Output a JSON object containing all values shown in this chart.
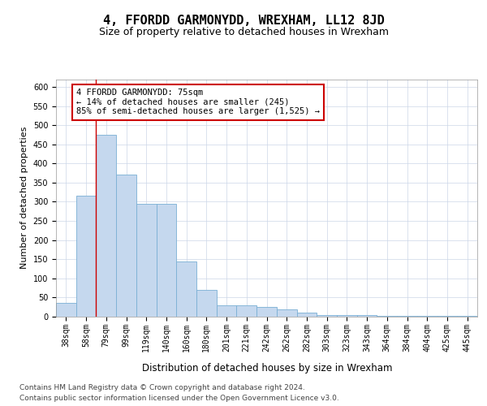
{
  "title": "4, FFORDD GARMONYDD, WREXHAM, LL12 8JD",
  "subtitle": "Size of property relative to detached houses in Wrexham",
  "xlabel": "Distribution of detached houses by size in Wrexham",
  "ylabel": "Number of detached properties",
  "categories": [
    "38sqm",
    "58sqm",
    "79sqm",
    "99sqm",
    "119sqm",
    "140sqm",
    "160sqm",
    "180sqm",
    "201sqm",
    "221sqm",
    "242sqm",
    "262sqm",
    "282sqm",
    "303sqm",
    "323sqm",
    "343sqm",
    "364sqm",
    "384sqm",
    "404sqm",
    "425sqm",
    "445sqm"
  ],
  "values": [
    35,
    315,
    475,
    370,
    295,
    295,
    145,
    70,
    30,
    30,
    25,
    20,
    10,
    5,
    5,
    5,
    2,
    2,
    2,
    2,
    2
  ],
  "bar_color": "#c5d8ee",
  "bar_edge_color": "#7aafd4",
  "annotation_text_line1": "4 FFORDD GARMONYDD: 75sqm",
  "annotation_text_line2": "← 14% of detached houses are smaller (245)",
  "annotation_text_line3": "85% of semi-detached houses are larger (1,525) →",
  "annotation_box_color": "#ffffff",
  "annotation_border_color": "#cc0000",
  "red_line_x": 1.5,
  "ylim": [
    0,
    620
  ],
  "yticks": [
    0,
    50,
    100,
    150,
    200,
    250,
    300,
    350,
    400,
    450,
    500,
    550,
    600
  ],
  "footer_line1": "Contains HM Land Registry data © Crown copyright and database right 2024.",
  "footer_line2": "Contains public sector information licensed under the Open Government Licence v3.0.",
  "bg_color": "#ffffff",
  "grid_color": "#ccd6e8",
  "title_fontsize": 11,
  "subtitle_fontsize": 9,
  "xlabel_fontsize": 8.5,
  "ylabel_fontsize": 8,
  "tick_fontsize": 7,
  "annotation_fontsize": 7.5,
  "footer_fontsize": 6.5
}
